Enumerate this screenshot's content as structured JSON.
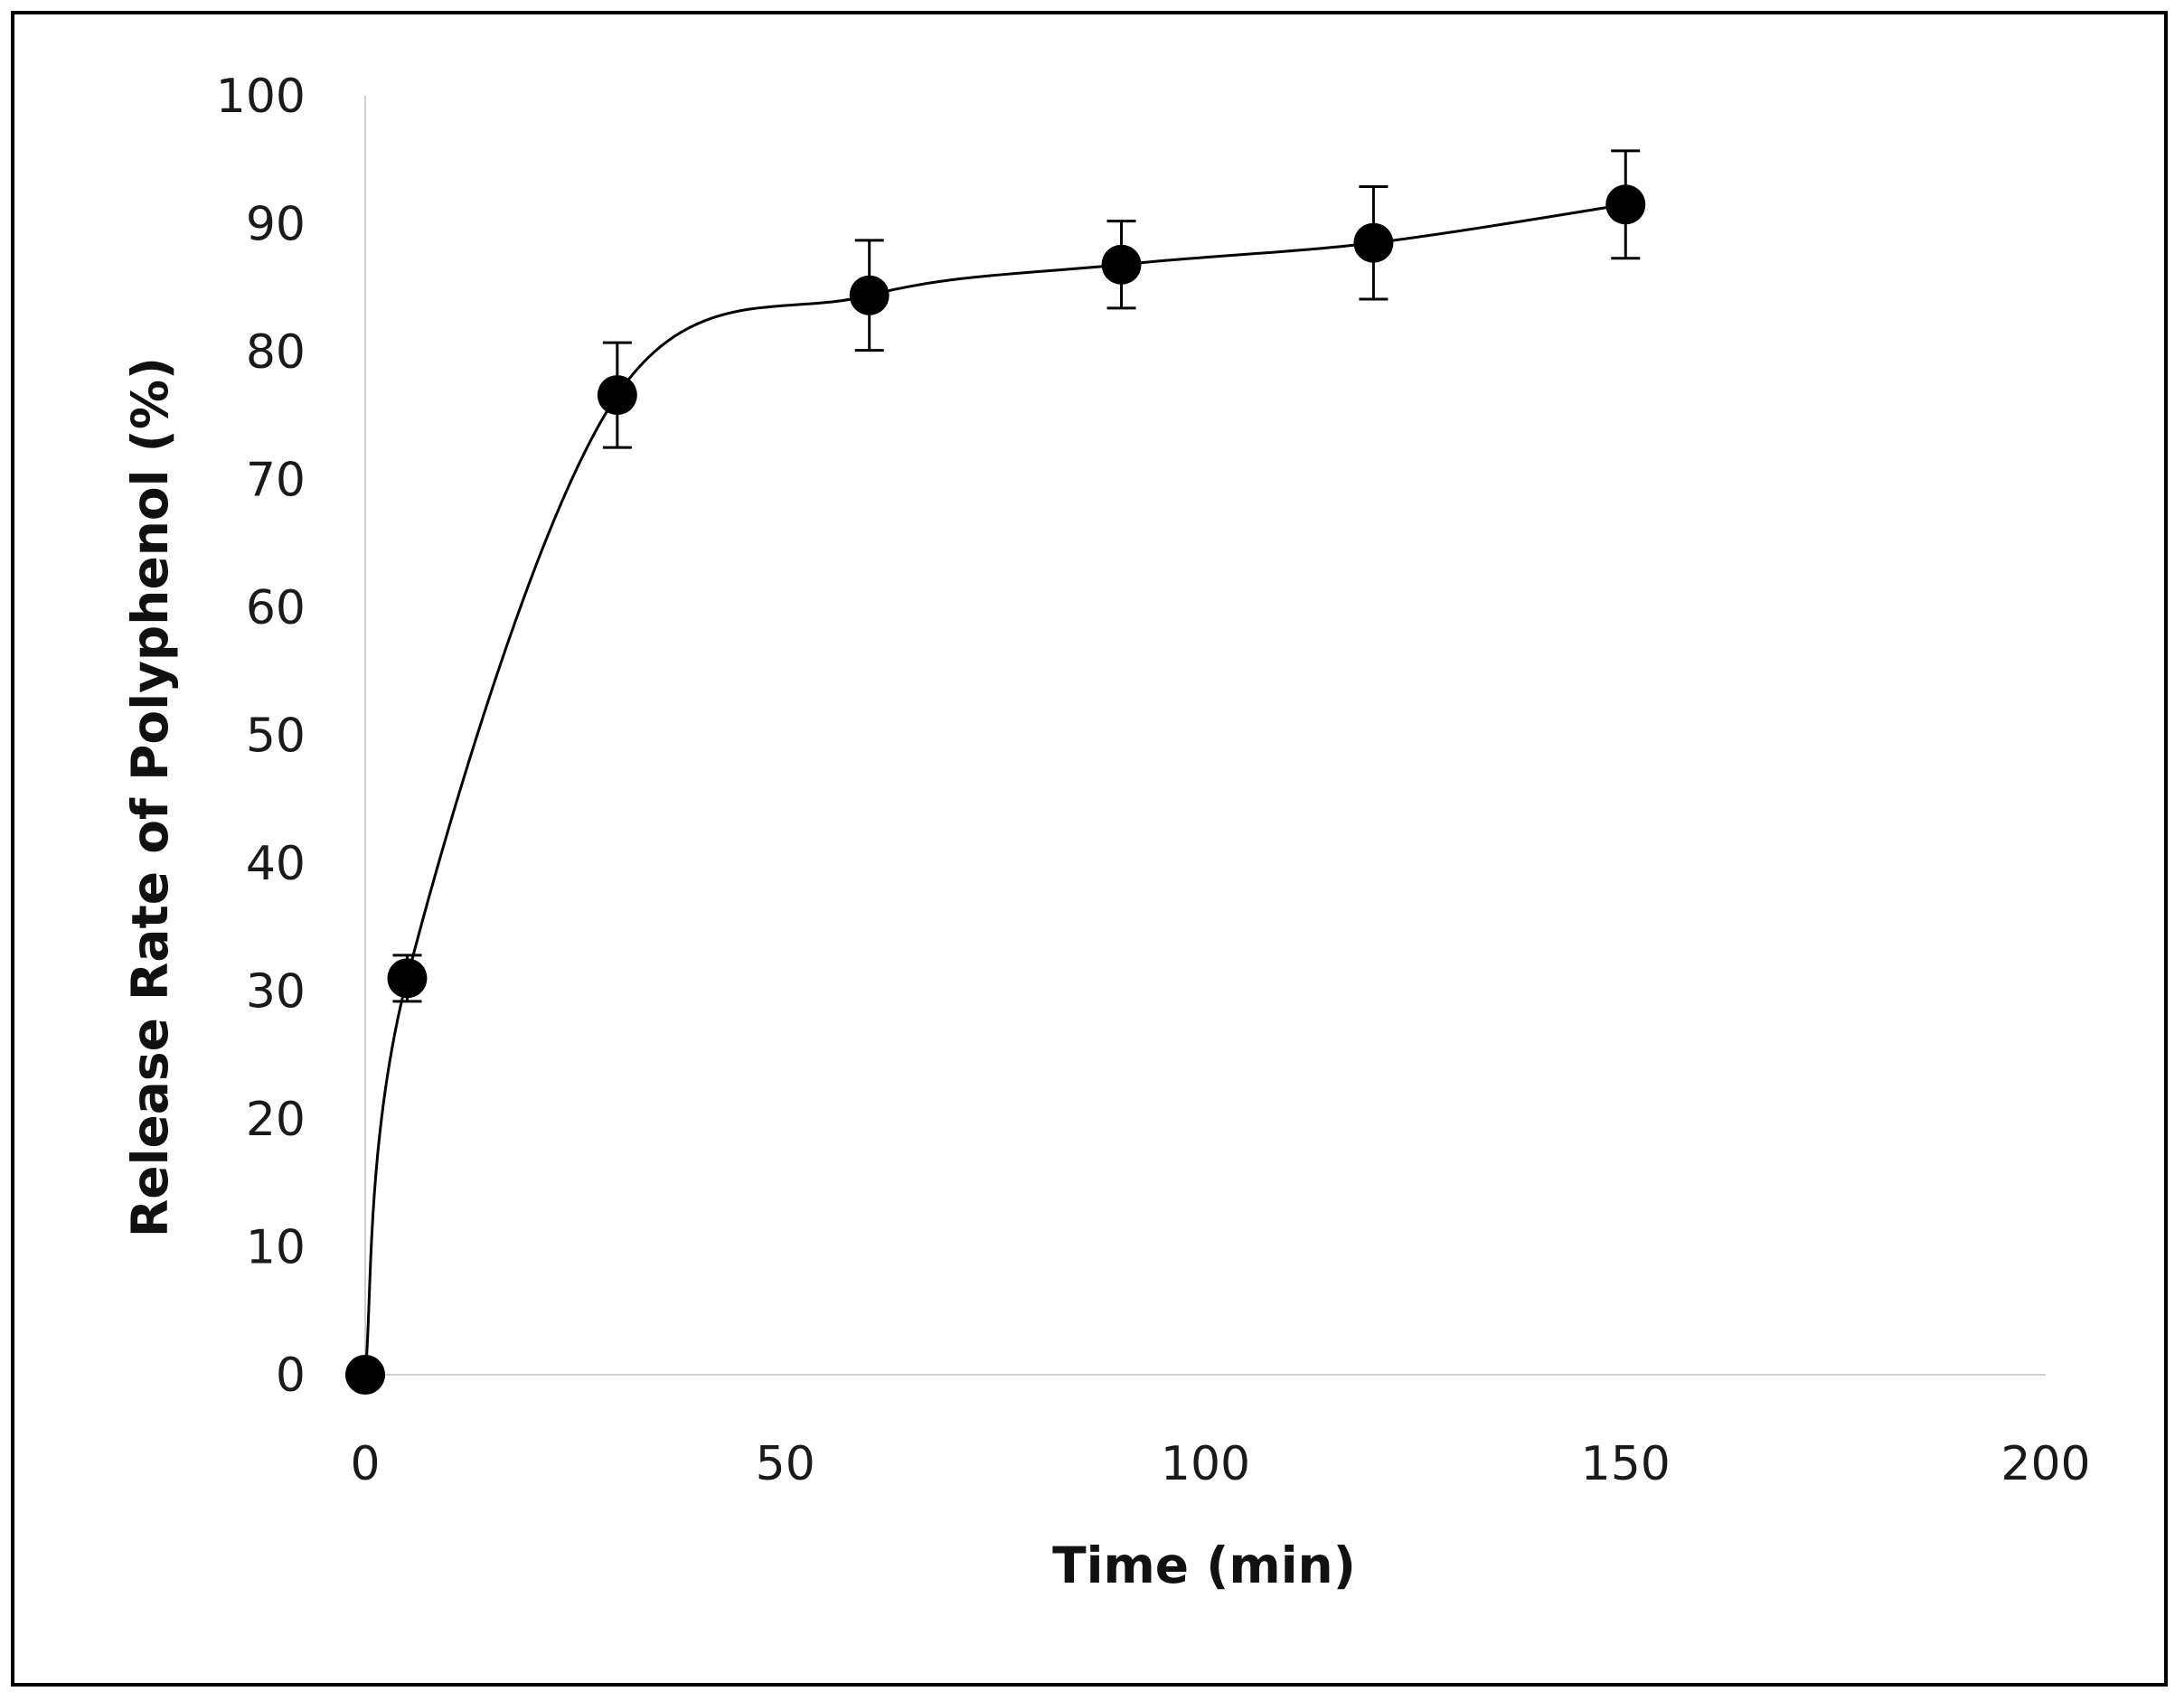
{
  "chart_data": {
    "type": "scatter",
    "title": "",
    "xlabel": "Time (min)",
    "ylabel": "Release Rate of Polyphenol (%)",
    "xlim": [
      0,
      200
    ],
    "ylim": [
      0,
      100
    ],
    "x_ticks": [
      0,
      50,
      100,
      150,
      200
    ],
    "y_ticks": [
      0,
      10,
      20,
      30,
      40,
      50,
      60,
      70,
      80,
      90,
      100
    ],
    "grid": false,
    "legend": "none",
    "marker_color": "#000000",
    "line_color": "#000000",
    "smooth_line": true,
    "series": [
      {
        "points": [
          {
            "x": 0,
            "y": 0,
            "err": 0
          },
          {
            "x": 5,
            "y": 31.0,
            "err": 1.8
          },
          {
            "x": 30,
            "y": 76.6,
            "err": 4.1
          },
          {
            "x": 60,
            "y": 84.4,
            "err": 4.3
          },
          {
            "x": 90,
            "y": 86.8,
            "err": 3.4
          },
          {
            "x": 120,
            "y": 88.5,
            "err": 4.4
          },
          {
            "x": 150,
            "y": 91.5,
            "err": 4.2
          }
        ]
      }
    ]
  }
}
